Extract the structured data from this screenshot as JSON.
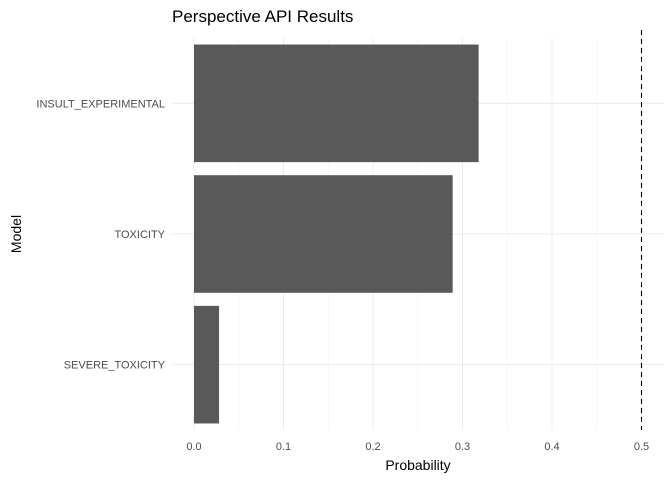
{
  "chart_data": {
    "type": "bar",
    "orientation": "horizontal",
    "title": "Perspective API Results",
    "xlabel": "Probability",
    "ylabel": "Model",
    "categories": [
      "INSULT_EXPERIMENTAL",
      "TOXICITY",
      "SEVERE_TOXICITY"
    ],
    "values": [
      0.318,
      0.289,
      0.028
    ],
    "xlim": [
      0,
      0.52
    ],
    "xticks": [
      "0.0",
      "0.1",
      "0.2",
      "0.3",
      "0.4",
      "0.5"
    ],
    "reference_line": {
      "x": 0.5,
      "style": "dashed",
      "color": "#000000"
    },
    "bar_color": "#595959",
    "grid": true,
    "legend": "none"
  }
}
